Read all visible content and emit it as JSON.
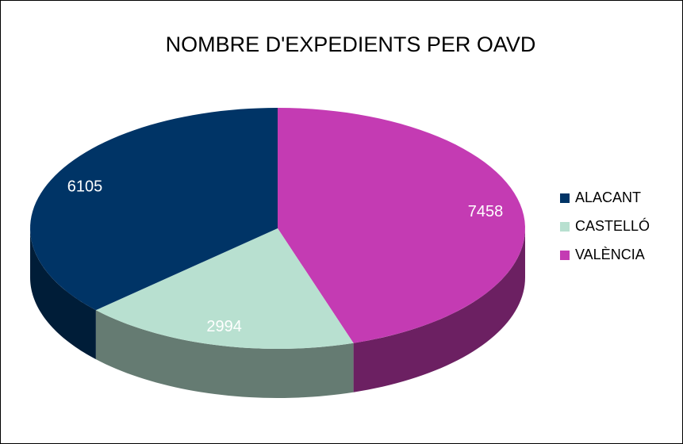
{
  "chart_data": {
    "type": "pie",
    "title": "NOMBRE D'EXPEDIENTS PER OAVD",
    "categories": [
      "VALÈNCIA",
      "CASTELLÓ",
      "ALACANT"
    ],
    "values": [
      7458,
      2994,
      6105
    ],
    "colors": [
      "#c43bb3",
      "#b8e0d0",
      "#003466"
    ],
    "legend_order": [
      2,
      1,
      0
    ],
    "legend": "right"
  }
}
